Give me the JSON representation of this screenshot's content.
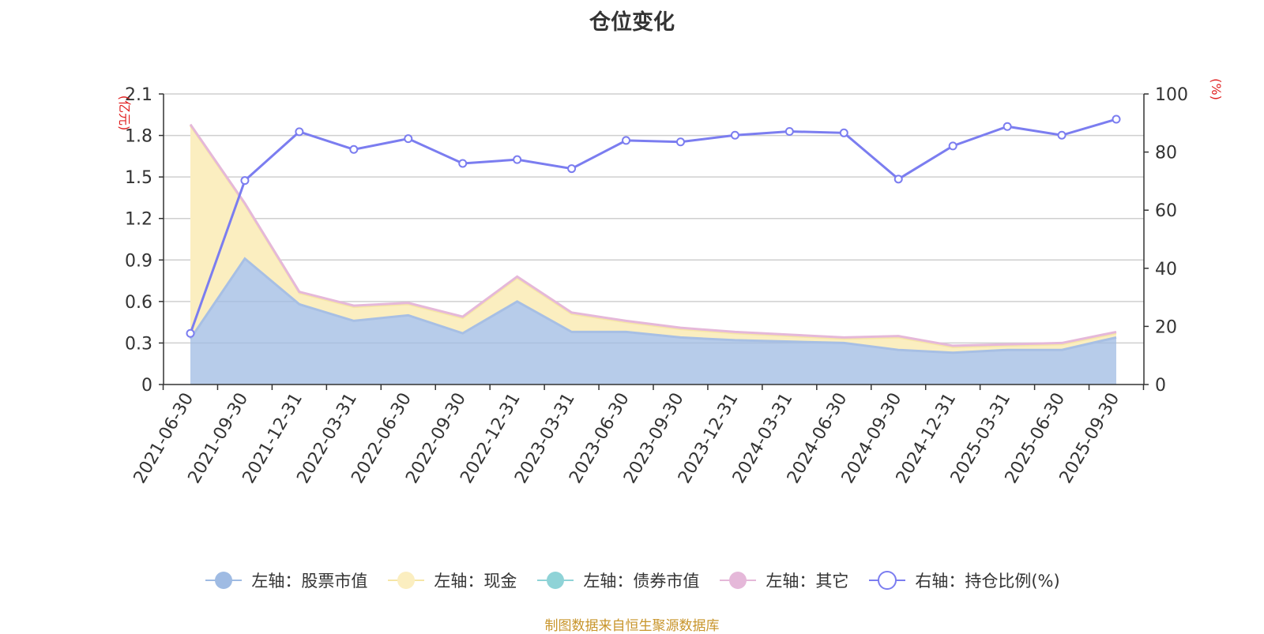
{
  "title": "仓位变化",
  "source_note": "制图数据来自恒生聚源数据库",
  "colors": {
    "stock": "#9fbbe3",
    "stock_line": "#a7bfe4",
    "cash_fill": "#fbeec0",
    "cash_line": "#f6e6a6",
    "bond": "#8fd3d7",
    "other_line": "#e5b8d9",
    "ratio_line": "#7b7df0",
    "axis_unit": "#e02020",
    "grid": "#cfcfcf",
    "source": "#c8952b"
  },
  "chart_data": {
    "type": "area",
    "title": "仓位变化",
    "categories": [
      "2021-06-30",
      "2021-09-30",
      "2021-12-31",
      "2022-03-31",
      "2022-06-30",
      "2022-09-30",
      "2022-12-31",
      "2023-03-31",
      "2023-06-30",
      "2023-09-30",
      "2023-12-31",
      "2024-03-31",
      "2024-06-30",
      "2024-09-30",
      "2024-12-31",
      "2025-03-31",
      "2025-06-30",
      "2025-09-30"
    ],
    "left_axis": {
      "unit": "(亿元)",
      "ylim": [
        0,
        2.1
      ],
      "ticks": [
        "0",
        "0.3",
        "0.6",
        "0.9",
        "1.2",
        "1.5",
        "1.8",
        "2.1"
      ]
    },
    "right_axis": {
      "unit": "(%)",
      "ylim": [
        0,
        100
      ],
      "ticks": [
        "0",
        "20",
        "40",
        "60",
        "80",
        "100"
      ]
    },
    "series": [
      {
        "name": "左轴：股票市值",
        "axis": "left",
        "icon": "filled-circle",
        "values": [
          0.33,
          0.91,
          0.58,
          0.46,
          0.5,
          0.37,
          0.6,
          0.38,
          0.38,
          0.34,
          0.32,
          0.31,
          0.3,
          0.25,
          0.23,
          0.25,
          0.25,
          0.34
        ]
      },
      {
        "name": "左轴：现金",
        "axis": "left",
        "icon": "filled-circle",
        "values": [
          1.54,
          0.39,
          0.08,
          0.1,
          0.08,
          0.11,
          0.17,
          0.13,
          0.07,
          0.06,
          0.05,
          0.04,
          0.03,
          0.09,
          0.04,
          0.03,
          0.04,
          0.03
        ]
      },
      {
        "name": "左轴：债券市值",
        "axis": "left",
        "icon": "filled-circle",
        "values": [
          0,
          0,
          0,
          0,
          0,
          0,
          0,
          0,
          0,
          0,
          0,
          0,
          0,
          0,
          0,
          0,
          0,
          0
        ]
      },
      {
        "name": "左轴：其它",
        "axis": "left",
        "icon": "filled-circle",
        "values": [
          0.01,
          0.01,
          0.01,
          0.01,
          0.01,
          0.01,
          0.01,
          0.01,
          0.01,
          0.01,
          0.01,
          0.01,
          0.01,
          0.01,
          0.01,
          0.01,
          0.01,
          0.01
        ]
      },
      {
        "name": "右轴：持仓比例(%)",
        "axis": "right",
        "icon": "hollow-circle",
        "values": [
          17.6,
          70.2,
          87.0,
          80.9,
          84.6,
          76.1,
          77.4,
          74.3,
          84.0,
          83.5,
          85.8,
          87.1,
          86.6,
          70.7,
          82.1,
          88.8,
          85.8,
          91.3
        ]
      }
    ],
    "grid": true,
    "legend_position": "bottom"
  }
}
